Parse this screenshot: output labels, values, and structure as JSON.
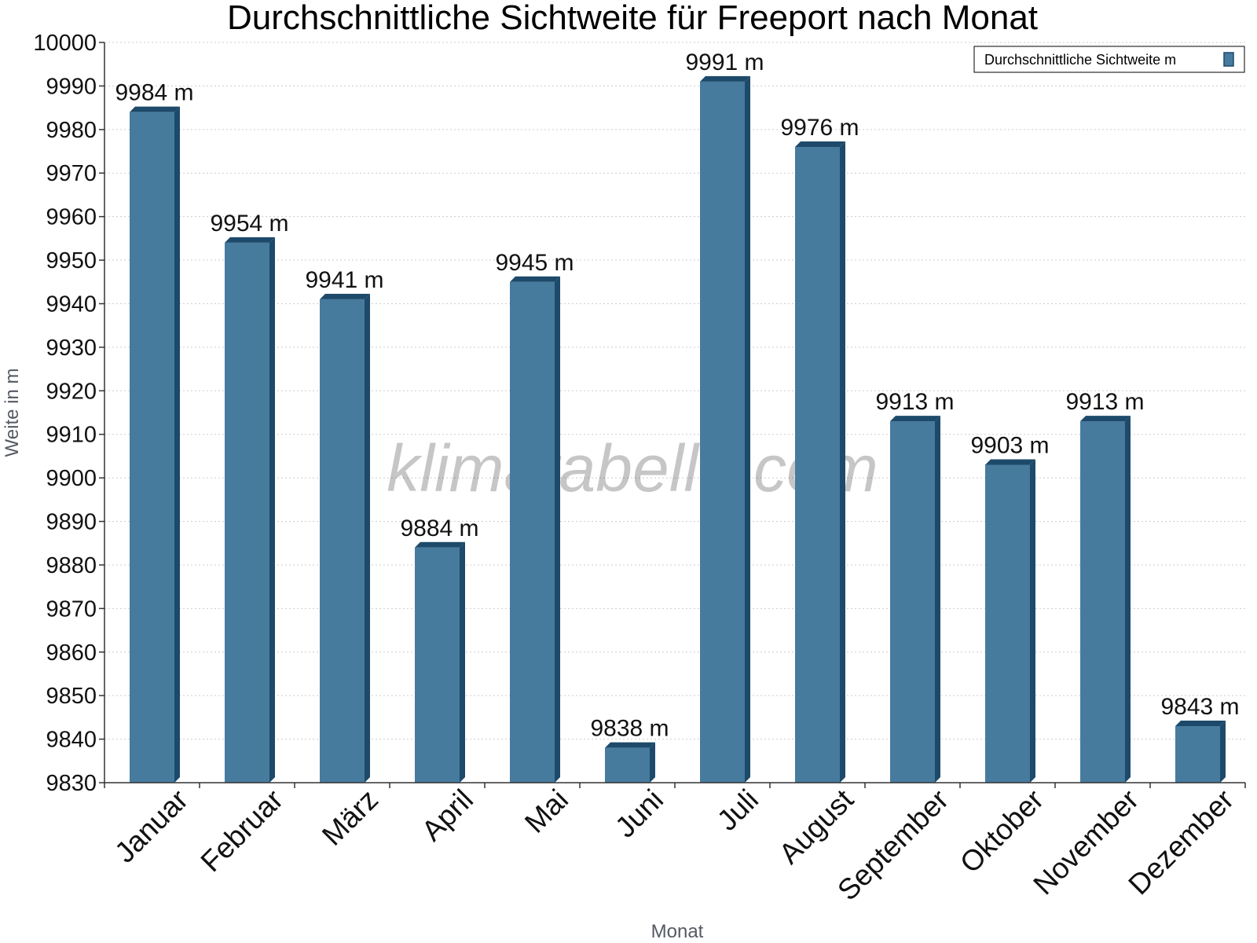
{
  "chart_data": {
    "type": "bar",
    "title": "Durchschnittliche Sichtweite für Freeport nach Monat",
    "xlabel": "Monat",
    "ylabel": "Weite in m",
    "categories": [
      "Januar",
      "Februar",
      "März",
      "April",
      "Mai",
      "Juni",
      "Juli",
      "August",
      "September",
      "Oktober",
      "November",
      "Dezember"
    ],
    "series": [
      {
        "name": "Durchschnittliche Sichtweite m",
        "values": [
          9984,
          9954,
          9941,
          9884,
          9945,
          9838,
          9991,
          9976,
          9913,
          9903,
          9913,
          9843
        ],
        "value_labels": [
          "9984 m",
          "9954 m",
          "9941 m",
          "9884 m",
          "9945 m",
          "9838 m",
          "9991 m",
          "9976 m",
          "9913 m",
          "9903 m",
          "9913 m",
          "9843 m"
        ]
      }
    ],
    "ylim": [
      9830,
      10000
    ],
    "yticks": [
      9830,
      9840,
      9850,
      9860,
      9870,
      9880,
      9890,
      9900,
      9910,
      9920,
      9930,
      9940,
      9950,
      9960,
      9970,
      9980,
      9990,
      10000
    ],
    "grid": true,
    "legend_position": "top-right",
    "watermark": "klimatabelle.com",
    "colors": {
      "bar": "#467b9e",
      "bar_dark": "#1d4a6a",
      "grid": "#cccccc",
      "axis": "#333333"
    }
  }
}
